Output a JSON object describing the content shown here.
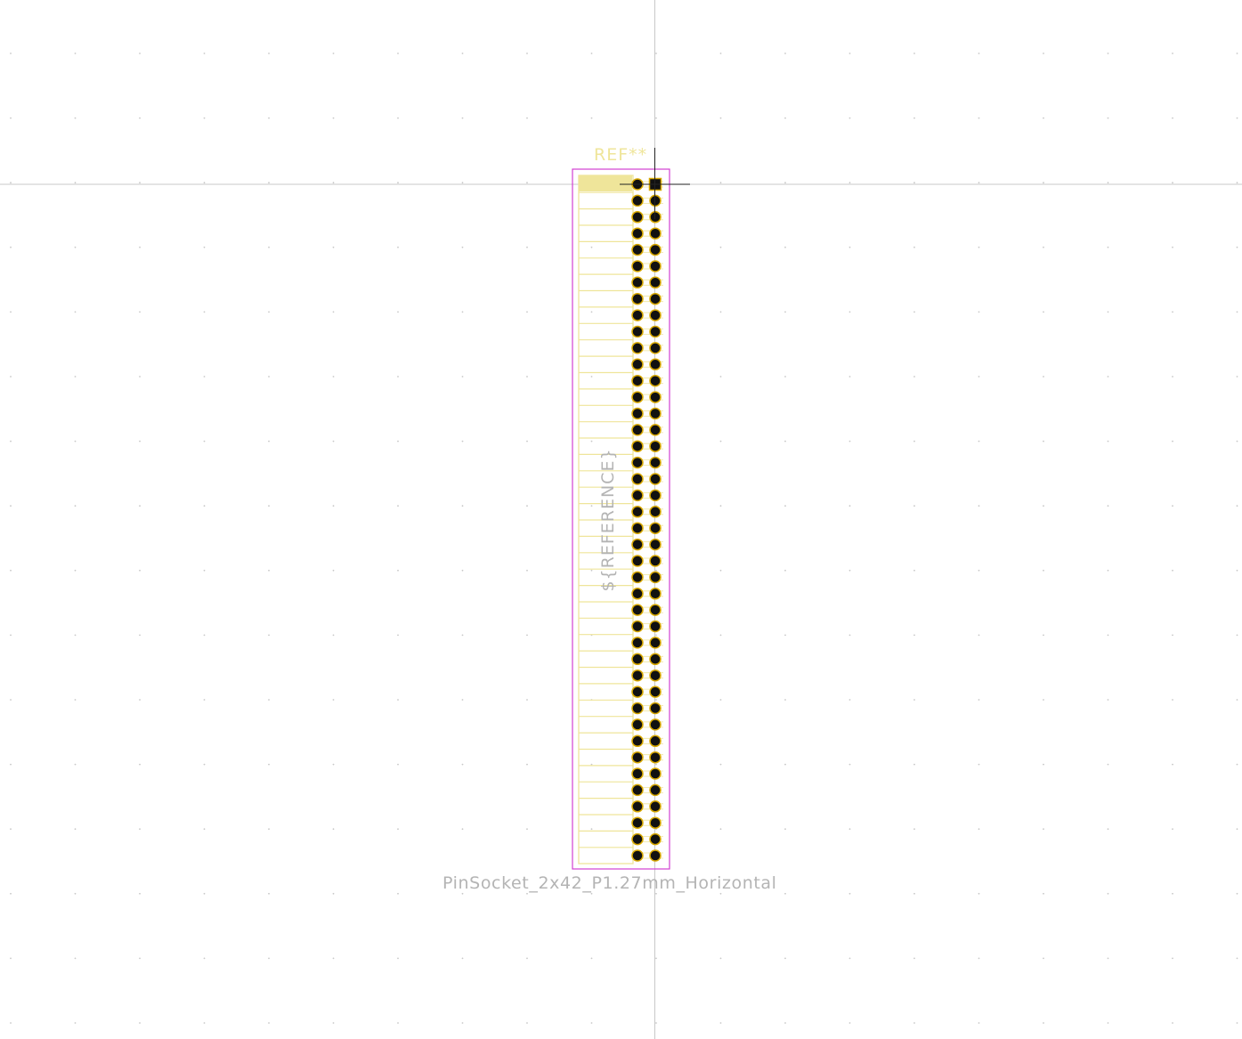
{
  "footprint": {
    "reference": "REF**",
    "value": "PinSocket_2x42_P1.27mm_Horizontal",
    "fab_reference": "${REFERENCE}",
    "pin_rows": 42,
    "pin_columns": 2
  },
  "colors": {
    "background": "#ffffff",
    "grid_dot": "#c8c8c8",
    "axis_line": "#c8c8c8",
    "silkscreen": "#efe59a",
    "courtyard": "#d23fd2",
    "pad_ring": "#d8a800",
    "pad_hole": "#111111",
    "fab_text": "#b4b4b4"
  }
}
